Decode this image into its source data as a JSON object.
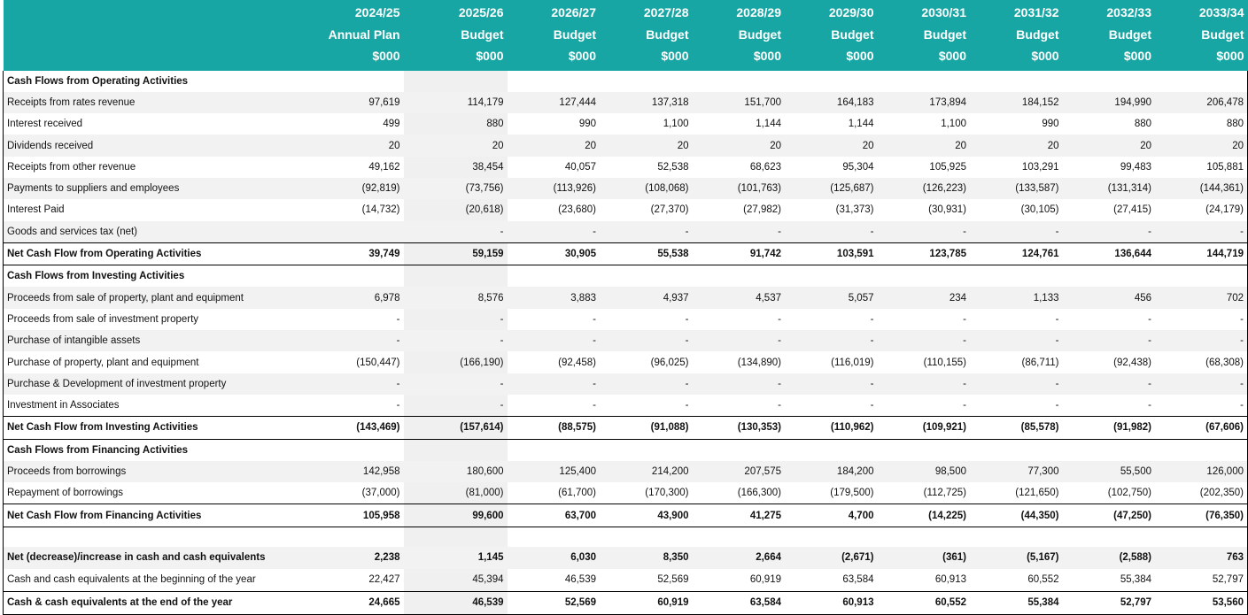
{
  "header": {
    "columns": [
      {
        "period": "2024/25",
        "kind": "Annual Plan",
        "unit": "$000"
      },
      {
        "period": "2025/26",
        "kind": "Budget",
        "unit": "$000"
      },
      {
        "period": "2026/27",
        "kind": "Budget",
        "unit": "$000"
      },
      {
        "period": "2027/28",
        "kind": "Budget",
        "unit": "$000"
      },
      {
        "period": "2028/29",
        "kind": "Budget",
        "unit": "$000"
      },
      {
        "period": "2029/30",
        "kind": "Budget",
        "unit": "$000"
      },
      {
        "period": "2030/31",
        "kind": "Budget",
        "unit": "$000"
      },
      {
        "period": "2031/32",
        "kind": "Budget",
        "unit": "$000"
      },
      {
        "period": "2032/33",
        "kind": "Budget",
        "unit": "$000"
      },
      {
        "period": "2033/34",
        "kind": "Budget",
        "unit": "$000"
      }
    ]
  },
  "sections": [
    {
      "heading": "Cash Flows from Operating Activities",
      "rows": [
        {
          "label": "Receipts from rates revenue",
          "values": [
            "97,619",
            "114,179",
            "127,444",
            "137,318",
            "151,700",
            "164,183",
            "173,894",
            "184,152",
            "194,990",
            "206,478"
          ]
        },
        {
          "label": "Interest received",
          "values": [
            "499",
            "880",
            "990",
            "1,100",
            "1,144",
            "1,144",
            "1,100",
            "990",
            "880",
            "880"
          ]
        },
        {
          "label": "Dividends received",
          "values": [
            "20",
            "20",
            "20",
            "20",
            "20",
            "20",
            "20",
            "20",
            "20",
            "20"
          ]
        },
        {
          "label": "Receipts from other revenue",
          "values": [
            "49,162",
            "38,454",
            "40,057",
            "52,538",
            "68,623",
            "95,304",
            "105,925",
            "103,291",
            "99,483",
            "105,881"
          ]
        },
        {
          "label": "Payments to suppliers and employees",
          "values": [
            "(92,819)",
            "(73,756)",
            "(113,926)",
            "(108,068)",
            "(101,763)",
            "(125,687)",
            "(126,223)",
            "(133,587)",
            "(131,314)",
            "(144,361)"
          ]
        },
        {
          "label": "Interest Paid",
          "values": [
            "(14,732)",
            "(20,618)",
            "(23,680)",
            "(27,370)",
            "(27,982)",
            "(31,373)",
            "(30,931)",
            "(30,105)",
            "(27,415)",
            "(24,179)"
          ]
        },
        {
          "label": "Goods and services tax (net)",
          "values": [
            null,
            "-",
            "-",
            "-",
            "-",
            "-",
            "-",
            "-",
            "-",
            "-"
          ]
        }
      ],
      "total": {
        "label": "Net Cash Flow from Operating Activities",
        "values": [
          "39,749",
          "59,159",
          "30,905",
          "55,538",
          "91,742",
          "103,591",
          "123,785",
          "124,761",
          "136,644",
          "144,719"
        ]
      }
    },
    {
      "heading": "Cash Flows from Investing Activities",
      "rows": [
        {
          "label": "Proceeds from sale of property, plant and equipment",
          "values": [
            "6,978",
            "8,576",
            "3,883",
            "4,937",
            "4,537",
            "5,057",
            "234",
            "1,133",
            "456",
            "702"
          ]
        },
        {
          "label": "Proceeds from sale of investment property",
          "values": [
            "-",
            "-",
            "-",
            "-",
            "-",
            "-",
            "-",
            "-",
            "-",
            "-"
          ]
        },
        {
          "label": "Purchase of intangible assets",
          "values": [
            "-",
            "-",
            "-",
            "-",
            "-",
            "-",
            "-",
            "-",
            "-",
            "-"
          ]
        },
        {
          "label": "Purchase of property, plant and equipment",
          "values": [
            "(150,447)",
            "(166,190)",
            "(92,458)",
            "(96,025)",
            "(134,890)",
            "(116,019)",
            "(110,155)",
            "(86,711)",
            "(92,438)",
            "(68,308)"
          ]
        },
        {
          "label": "Purchase & Development of investment property",
          "values": [
            "-",
            "-",
            "-",
            "-",
            "-",
            "-",
            "-",
            "-",
            "-",
            "-"
          ]
        },
        {
          "label": "Investment in Associates",
          "values": [
            "-",
            "-",
            "-",
            "-",
            "-",
            "-",
            "-",
            "-",
            "-",
            "-"
          ]
        }
      ],
      "total": {
        "label": "Net Cash Flow from Investing Activities",
        "values": [
          "(143,469)",
          "(157,614)",
          "(88,575)",
          "(91,088)",
          "(130,353)",
          "(110,962)",
          "(109,921)",
          "(85,578)",
          "(91,982)",
          "(67,606)"
        ]
      }
    },
    {
      "heading": "Cash Flows from Financing Activities",
      "rows": [
        {
          "label": "Proceeds from borrowings",
          "values": [
            "142,958",
            "180,600",
            "125,400",
            "214,200",
            "207,575",
            "184,200",
            "98,500",
            "77,300",
            "55,500",
            "126,000"
          ]
        },
        {
          "label": "Repayment of borrowings",
          "values": [
            "(37,000)",
            "(81,000)",
            "(61,700)",
            "(170,300)",
            "(166,300)",
            "(179,500)",
            "(112,725)",
            "(121,650)",
            "(102,750)",
            "(202,350)"
          ]
        }
      ],
      "total": {
        "label": "Net Cash Flow from Financing Activities",
        "values": [
          "105,958",
          "99,600",
          "63,700",
          "43,900",
          "41,275",
          "4,700",
          "(14,225)",
          "(44,350)",
          "(47,250)",
          "(76,350)"
        ]
      }
    }
  ],
  "summary": {
    "net_change": {
      "label": "Net (decrease)/increase in cash and cash equivalents",
      "values": [
        "2,238",
        "1,145",
        "6,030",
        "8,350",
        "2,664",
        "(2,671)",
        "(361)",
        "(5,167)",
        "(2,588)",
        "763"
      ]
    },
    "opening": {
      "label": "Cash and cash equivalents at the beginning of the year",
      "values": [
        "22,427",
        "45,394",
        "46,539",
        "52,569",
        "60,919",
        "63,584",
        "60,913",
        "60,552",
        "55,384",
        "52,797"
      ]
    },
    "closing": {
      "label": "Cash & cash equivalents at the end of the year",
      "values": [
        "24,665",
        "46,539",
        "52,569",
        "60,919",
        "63,584",
        "60,913",
        "60,552",
        "55,384",
        "52,797",
        "53,560"
      ]
    }
  }
}
